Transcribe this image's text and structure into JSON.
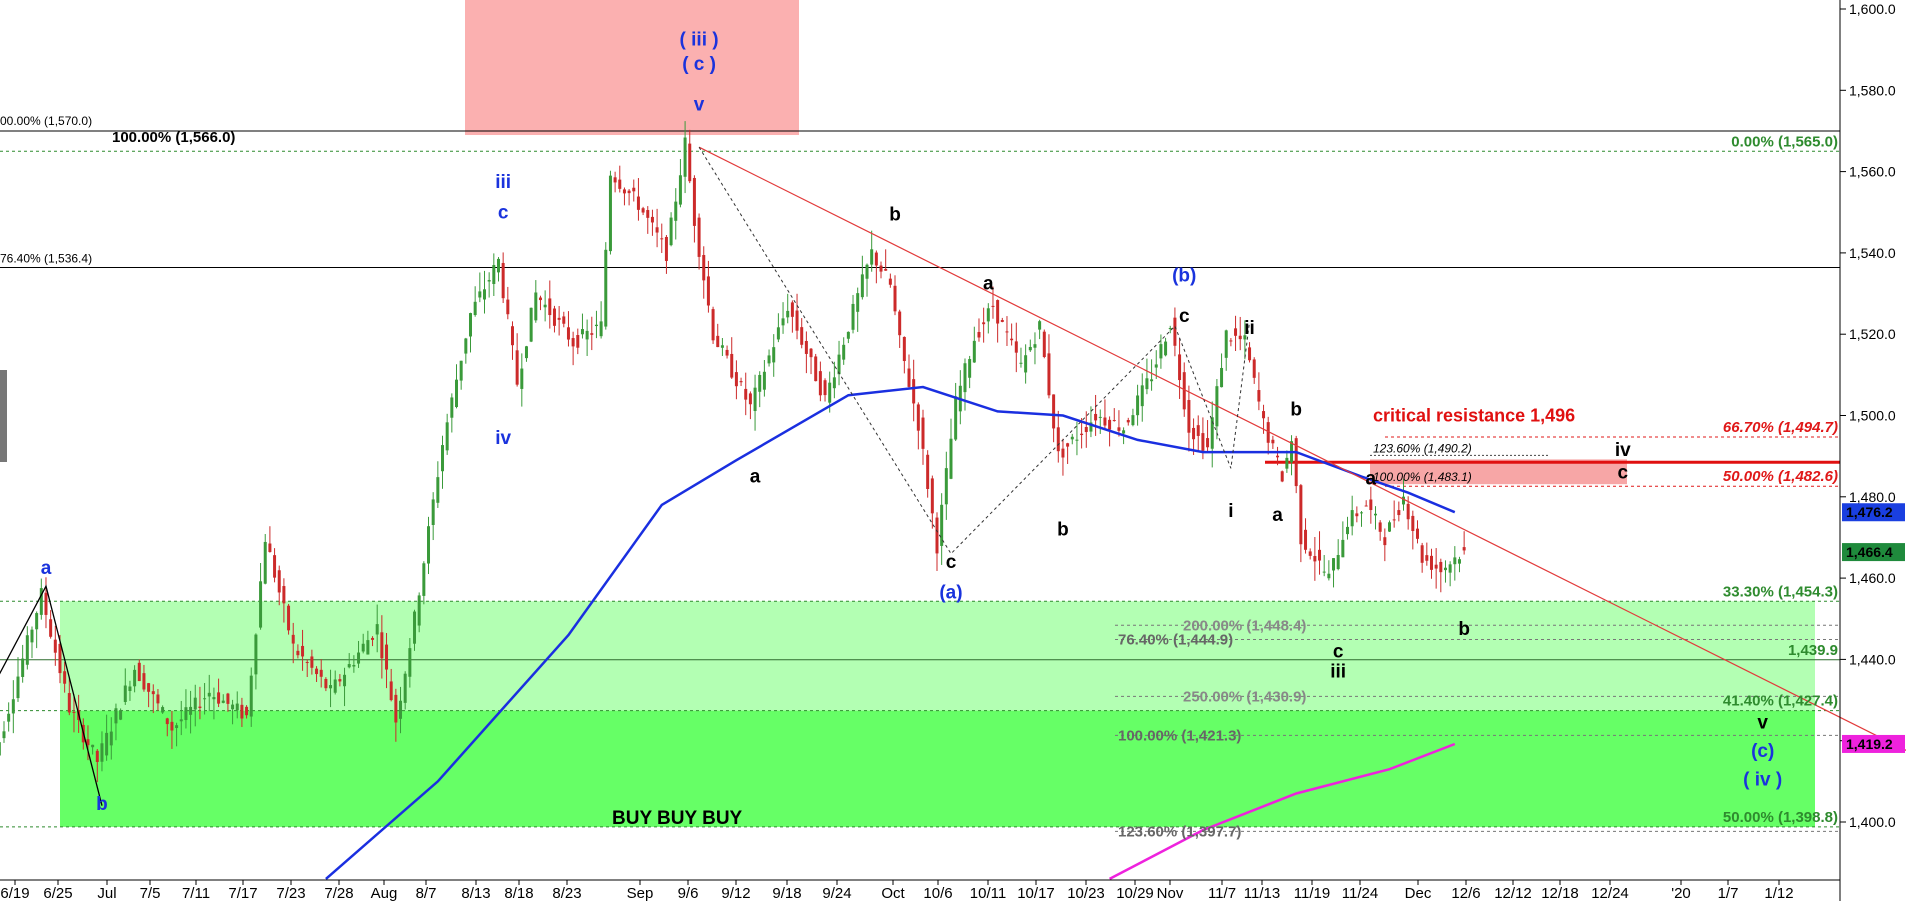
{
  "chart_data": {
    "type": "candlestick",
    "x_ticks": [
      "6/19",
      "6/25",
      "Jul",
      "7/5",
      "7/11",
      "7/17",
      "7/23",
      "7/28",
      "Aug",
      "8/7",
      "8/13",
      "8/18",
      "8/23",
      "Sep",
      "9/6",
      "9/12",
      "9/18",
      "9/24",
      "Oct",
      "10/6",
      "10/11",
      "10/17",
      "10/23",
      "10/29",
      "Nov",
      "11/7",
      "11/13",
      "11/19",
      "11/24",
      "Dec",
      "12/6",
      "12/12",
      "12/18",
      "12/24",
      "'20",
      "1/7",
      "1/12"
    ],
    "y_ticks": [
      "1,400.0",
      "1,420.0",
      "1,440.0",
      "1,460.0",
      "1,480.0",
      "1,500.0",
      "1,520.0",
      "1,540.0",
      "1,560.0",
      "1,580.0",
      "1,600.0"
    ],
    "ylim": [
      1386,
      1602
    ],
    "price_path": [
      {
        "d": 0,
        "v": 1408
      },
      {
        "d": 4,
        "v": 1440
      },
      {
        "d": 6,
        "v": 1456
      },
      {
        "d": 9,
        "v": 1428
      },
      {
        "d": 12,
        "v": 1415
      },
      {
        "d": 16,
        "v": 1438
      },
      {
        "d": 20,
        "v": 1423
      },
      {
        "d": 24,
        "v": 1432
      },
      {
        "d": 28,
        "v": 1426
      },
      {
        "d": 30,
        "v": 1470
      },
      {
        "d": 33,
        "v": 1443
      },
      {
        "d": 37,
        "v": 1432
      },
      {
        "d": 42,
        "v": 1448
      },
      {
        "d": 44,
        "v": 1425
      },
      {
        "d": 46,
        "v": 1450
      },
      {
        "d": 49,
        "v": 1493
      },
      {
        "d": 52,
        "v": 1525
      },
      {
        "d": 55,
        "v": 1538
      },
      {
        "d": 57,
        "v": 1508
      },
      {
        "d": 59,
        "v": 1530
      },
      {
        "d": 63,
        "v": 1518
      },
      {
        "d": 66,
        "v": 1522
      },
      {
        "d": 67,
        "v": 1560
      },
      {
        "d": 70,
        "v": 1552
      },
      {
        "d": 73,
        "v": 1540
      },
      {
        "d": 75,
        "v": 1567
      },
      {
        "d": 76,
        "v": 1548
      },
      {
        "d": 78,
        "v": 1520
      },
      {
        "d": 82,
        "v": 1502
      },
      {
        "d": 86,
        "v": 1527
      },
      {
        "d": 90,
        "v": 1504
      },
      {
        "d": 95,
        "v": 1540
      },
      {
        "d": 97,
        "v": 1532
      },
      {
        "d": 98,
        "v": 1518
      },
      {
        "d": 100,
        "v": 1498
      },
      {
        "d": 102,
        "v": 1468
      },
      {
        "d": 104,
        "v": 1503
      },
      {
        "d": 106,
        "v": 1519
      },
      {
        "d": 108,
        "v": 1527
      },
      {
        "d": 111,
        "v": 1512
      },
      {
        "d": 113,
        "v": 1522
      },
      {
        "d": 115,
        "v": 1490
      },
      {
        "d": 119,
        "v": 1500
      },
      {
        "d": 122,
        "v": 1497
      },
      {
        "d": 125,
        "v": 1510
      },
      {
        "d": 127,
        "v": 1523
      },
      {
        "d": 129,
        "v": 1497
      },
      {
        "d": 131,
        "v": 1492
      },
      {
        "d": 133,
        "v": 1520
      },
      {
        "d": 135,
        "v": 1518
      },
      {
        "d": 137,
        "v": 1498
      },
      {
        "d": 139,
        "v": 1485
      },
      {
        "d": 140,
        "v": 1494
      },
      {
        "d": 141,
        "v": 1470
      },
      {
        "d": 144,
        "v": 1460
      },
      {
        "d": 146,
        "v": 1474
      },
      {
        "d": 148,
        "v": 1478
      },
      {
        "d": 150,
        "v": 1470
      },
      {
        "d": 152,
        "v": 1480
      },
      {
        "d": 154,
        "v": 1465
      },
      {
        "d": 156,
        "v": 1462
      },
      {
        "d": 158,
        "v": 1466
      }
    ],
    "ma_blue": [
      {
        "d": 36,
        "v": 1386
      },
      {
        "d": 48,
        "v": 1410
      },
      {
        "d": 62,
        "v": 1446
      },
      {
        "d": 72,
        "v": 1478
      },
      {
        "d": 80,
        "v": 1489
      },
      {
        "d": 92,
        "v": 1505
      },
      {
        "d": 100,
        "v": 1507
      },
      {
        "d": 108,
        "v": 1501
      },
      {
        "d": 115,
        "v": 1500
      },
      {
        "d": 123,
        "v": 1494
      },
      {
        "d": 130,
        "v": 1491
      },
      {
        "d": 140,
        "v": 1491
      },
      {
        "d": 147,
        "v": 1485
      },
      {
        "d": 152,
        "v": 1481
      },
      {
        "d": 157,
        "v": 1476.2
      }
    ],
    "ma_magenta": [
      {
        "d": 120,
        "v": 1386
      },
      {
        "d": 130,
        "v": 1398
      },
      {
        "d": 140,
        "v": 1407
      },
      {
        "d": 150,
        "v": 1413
      },
      {
        "d": 157,
        "v": 1419.2
      }
    ],
    "trendline": [
      {
        "d": 76,
        "v": 1566
      },
      {
        "d": 219,
        "v": 1402
      }
    ],
    "price_labels": [
      {
        "text": "1,476.2",
        "v": 1476.2,
        "color": "#1a3fe0"
      },
      {
        "text": "1,466.4",
        "v": 1466.4,
        "color": "#1f8a3c"
      },
      {
        "text": "1,419.2",
        "v": 1419.2,
        "color": "#ee22dd"
      }
    ],
    "fib_lines_right": [
      {
        "v": 1565.0,
        "text": "0.00% (1,565.0)",
        "color": "#2e8b2e"
      },
      {
        "v": 1494.7,
        "text": "66.70% (1,494.7)",
        "color": "#e01818"
      },
      {
        "v": 1482.6,
        "text": "50.00% (1,482.6)",
        "color": "#e01818"
      },
      {
        "v": 1454.3,
        "text": "33.30% (1,454.3)",
        "color": "#2e8b2e"
      },
      {
        "v": 1439.9,
        "text": "1,439.9",
        "color": "#2e8b2e"
      },
      {
        "v": 1427.4,
        "text": "41.40% (1,427.4)",
        "color": "#2e8b2e"
      },
      {
        "v": 1398.8,
        "text": "50.00% (1,398.8)",
        "color": "#2e8b2e"
      }
    ],
    "fib_labels_mid": [
      {
        "v": 1448.4,
        "text": "200.00% (1,448.4)",
        "color": "#888888"
      },
      {
        "v": 1444.9,
        "text": "76.40% (1,444.9)",
        "color": "#666666"
      },
      {
        "v": 1430.9,
        "text": "250.00% (1,430.9)",
        "color": "#888888"
      },
      {
        "v": 1421.3,
        "text": "100.00% (1,421.3)",
        "color": "#666666"
      },
      {
        "v": 1397.7,
        "text": "123.60% (1,397.7)",
        "color": "#666666"
      }
    ],
    "fib_labels_box": [
      {
        "v": 1490.2,
        "text": "123.60% (1,490.2)"
      },
      {
        "v": 1483.1,
        "text": "100.00% (1,483.1)"
      }
    ],
    "fib_labels_left": [
      {
        "v": 1570.0,
        "text": "00.00% (1,570.0)"
      },
      {
        "v": 1566.0,
        "text": "100.00% (1,566.0)"
      },
      {
        "v": 1536.4,
        "text": "76.40% (1,536.4)"
      }
    ],
    "resistance": {
      "text": "critical resistance 1,496",
      "v": 1488.5
    },
    "buy_zone_text": "BUY BUY BUY",
    "wave_labels": [
      {
        "text": "( iii )",
        "d": 76,
        "v": 1591,
        "color": "#1a33dd"
      },
      {
        "text": "( c )",
        "d": 76,
        "v": 1585,
        "color": "#1a33dd"
      },
      {
        "text": "v",
        "d": 76,
        "v": 1575,
        "color": "#1a33dd"
      },
      {
        "text": "iii",
        "d": 55,
        "v": 1556,
        "color": "#1a33dd"
      },
      {
        "text": "c",
        "d": 55,
        "v": 1548.5,
        "color": "#1a33dd"
      },
      {
        "text": "iv",
        "d": 55,
        "v": 1493,
        "color": "#1a33dd"
      },
      {
        "text": "a",
        "d": 6,
        "v": 1461,
        "color": "#1a33dd"
      },
      {
        "text": "b",
        "d": 12,
        "v": 1403,
        "color": "#1a33dd"
      },
      {
        "text": "b",
        "d": 97,
        "v": 1548,
        "color": "#000000"
      },
      {
        "text": "a",
        "d": 82,
        "v": 1483.5,
        "color": "#000000"
      },
      {
        "text": "c",
        "d": 103,
        "v": 1462.5,
        "color": "#000000"
      },
      {
        "text": "(a)",
        "d": 103,
        "v": 1455,
        "color": "#1a33dd"
      },
      {
        "text": "a",
        "d": 107,
        "v": 1531,
        "color": "#000000"
      },
      {
        "text": "b",
        "d": 115,
        "v": 1470.5,
        "color": "#000000"
      },
      {
        "text": "(b)",
        "d": 128,
        "v": 1533,
        "color": "#1a33dd"
      },
      {
        "text": "c",
        "d": 128,
        "v": 1523,
        "color": "#000000"
      },
      {
        "text": "ii",
        "d": 135,
        "v": 1520,
        "color": "#000000"
      },
      {
        "text": "i",
        "d": 133,
        "v": 1475,
        "color": "#000000"
      },
      {
        "text": "a",
        "d": 138,
        "v": 1474,
        "color": "#000000"
      },
      {
        "text": "b",
        "d": 140,
        "v": 1500,
        "color": "#000000"
      },
      {
        "text": "a",
        "d": 148,
        "v": 1483,
        "color": "#000000"
      },
      {
        "text": "c",
        "d": 144.5,
        "v": 1440.5,
        "color": "#000000"
      },
      {
        "text": "iii",
        "d": 144.5,
        "v": 1435.5,
        "color": "#000000"
      },
      {
        "text": "b",
        "d": 158,
        "v": 1446,
        "color": "#000000"
      },
      {
        "text": "iv",
        "d": 175,
        "v": 1490,
        "color": "#000000"
      },
      {
        "text": "c",
        "d": 175,
        "v": 1484.5,
        "color": "#000000"
      },
      {
        "text": "v",
        "d": 190,
        "v": 1423,
        "color": "#000000"
      },
      {
        "text": "(c)",
        "d": 190,
        "v": 1416,
        "color": "#1a33dd"
      },
      {
        "text": "( iv )",
        "d": 190,
        "v": 1409,
        "color": "#1a33dd"
      }
    ]
  }
}
